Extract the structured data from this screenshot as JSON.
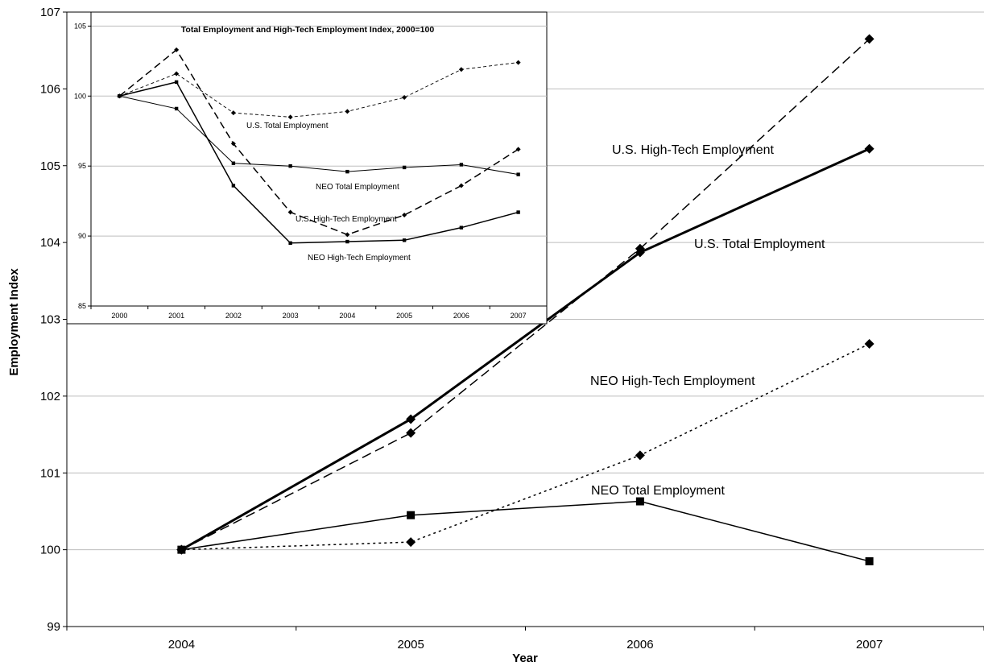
{
  "chart_data": [
    {
      "type": "line",
      "title": "",
      "xlabel": "Year",
      "ylabel": "Employment Index",
      "categories": [
        "2004",
        "2005",
        "2006",
        "2007"
      ],
      "ylim": [
        99,
        107
      ],
      "yticks": [
        "99",
        "100",
        "101",
        "102",
        "103",
        "104",
        "105",
        "106",
        "107"
      ],
      "grid": true,
      "legend": "inline labels",
      "series": [
        {
          "name": "U.S. Total Employment",
          "style": "solid-thick",
          "marker": "diamond",
          "values": [
            100,
            101.7,
            103.87,
            105.22
          ]
        },
        {
          "name": "U.S. High-Tech Employment",
          "style": "dashed",
          "marker": "diamond",
          "values": [
            100,
            101.52,
            103.92,
            106.65
          ]
        },
        {
          "name": "NEO High-Tech Employment",
          "style": "dotted",
          "marker": "diamond",
          "values": [
            100,
            100.1,
            101.23,
            102.68
          ]
        },
        {
          "name": "NEO Total Employment",
          "style": "solid",
          "marker": "square",
          "values": [
            100,
            100.45,
            100.63,
            99.85
          ]
        }
      ]
    },
    {
      "type": "line",
      "title": "Total Employment and High-Tech Employment Index, 2000=100",
      "xlabel": "",
      "ylabel": "",
      "categories": [
        "2000",
        "2001",
        "2002",
        "2003",
        "2004",
        "2005",
        "2006",
        "2007"
      ],
      "ylim": [
        85,
        106
      ],
      "yticks": [
        "85",
        "90",
        "95",
        "100",
        "105"
      ],
      "grid": true,
      "legend": "inline labels",
      "series": [
        {
          "name": "U.S. Total Employment",
          "style": "dashed-thin",
          "marker": "diamond-small",
          "values": [
            100,
            101.6,
            98.8,
            98.5,
            98.9,
            99.9,
            101.9,
            102.4
          ]
        },
        {
          "name": "U.S. High-Tech Employment",
          "style": "dashed-long",
          "marker": "diamond-small",
          "values": [
            100,
            103.3,
            96.6,
            91.7,
            90.1,
            91.5,
            93.6,
            96.2
          ]
        },
        {
          "name": "NEO Total Employment",
          "style": "solid-thin",
          "marker": "square-small",
          "values": [
            100,
            99.1,
            95.2,
            95.0,
            94.6,
            94.9,
            95.1,
            94.4
          ]
        },
        {
          "name": "NEO High-Tech Employment",
          "style": "solid",
          "marker": "square-small",
          "values": [
            100,
            101.0,
            93.6,
            89.5,
            89.6,
            89.7,
            90.6,
            91.7
          ]
        }
      ]
    }
  ]
}
